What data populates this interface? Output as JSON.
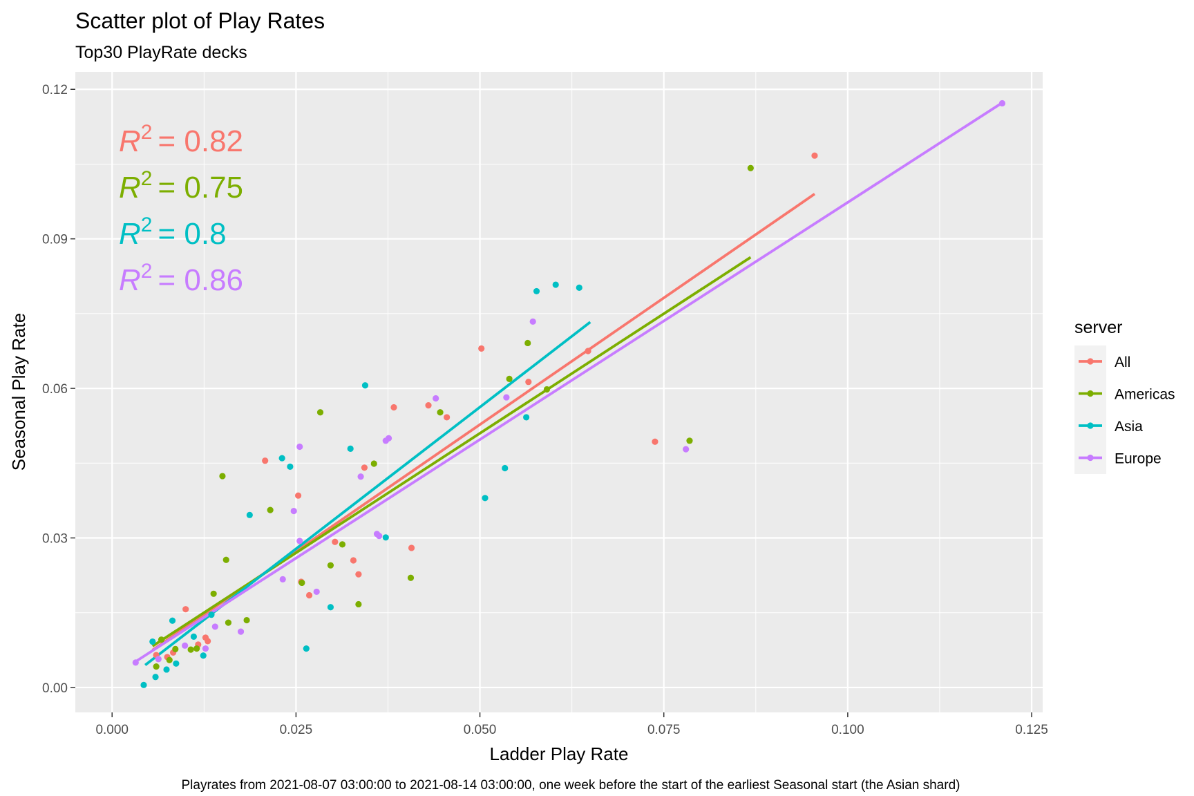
{
  "chart_data": {
    "type": "scatter",
    "title": "Scatter plot of Play Rates",
    "subtitle": "Top30 PlayRate decks",
    "xlabel": "Ladder Play Rate",
    "ylabel": "Seasonal Play Rate",
    "caption": "Playrates from 2021-08-07 03:00:00 to 2021-08-14 03:00:00, one week before the start of the earliest Seasonal start (the Asian shard)",
    "xlim": [
      -0.005,
      0.1265
    ],
    "ylim": [
      -0.005,
      0.1235
    ],
    "x_ticks": [
      0.0,
      0.025,
      0.05,
      0.075,
      0.1,
      0.125
    ],
    "x_tick_labels": [
      "0.000",
      "0.025",
      "0.050",
      "0.075",
      "0.100",
      "0.125"
    ],
    "y_ticks": [
      0.0,
      0.03,
      0.06,
      0.09,
      0.12
    ],
    "y_tick_labels": [
      "0.00",
      "0.03",
      "0.06",
      "0.09",
      "0.12"
    ],
    "grid": true,
    "legend": {
      "title": "server",
      "position": "right"
    },
    "annotations": [
      {
        "prefix": "R",
        "sup": "2",
        "text": "= 0.82",
        "color": "#F8766D"
      },
      {
        "prefix": "R",
        "sup": "2",
        "text": "= 0.75",
        "color": "#7CAE00"
      },
      {
        "prefix": "R",
        "sup": "2",
        "text": "= 0.8",
        "color": "#00BFC4"
      },
      {
        "prefix": "R",
        "sup": "2",
        "text": "= 0.86",
        "color": "#C77CFF"
      }
    ],
    "series": [
      {
        "name": "All",
        "color": "#F8766D",
        "fit": {
          "x": [
            0.0055,
            0.0955
          ],
          "y": [
            0.0075,
            0.099
          ]
        },
        "points": [
          [
            0.0955,
            0.1067
          ],
          [
            0.0738,
            0.0493
          ],
          [
            0.0502,
            0.068
          ],
          [
            0.0566,
            0.0613
          ],
          [
            0.0647,
            0.0675
          ],
          [
            0.043,
            0.0566
          ],
          [
            0.0455,
            0.0542
          ],
          [
            0.0383,
            0.0562
          ],
          [
            0.0343,
            0.0441
          ],
          [
            0.0407,
            0.028
          ],
          [
            0.0335,
            0.0227
          ],
          [
            0.0328,
            0.0255
          ],
          [
            0.0303,
            0.0292
          ],
          [
            0.0253,
            0.0385
          ],
          [
            0.0208,
            0.0455
          ],
          [
            0.0257,
            0.0212
          ],
          [
            0.0268,
            0.0185
          ],
          [
            0.013,
            0.0093
          ],
          [
            0.0127,
            0.01
          ],
          [
            0.0117,
            0.0086
          ],
          [
            0.01,
            0.0157
          ],
          [
            0.0083,
            0.007
          ],
          [
            0.0075,
            0.0061
          ],
          [
            0.006,
            0.0065
          ]
        ]
      },
      {
        "name": "Americas",
        "color": "#7CAE00",
        "fit": {
          "x": [
            0.0055,
            0.0868
          ],
          "y": [
            0.0083,
            0.0863
          ]
        },
        "points": [
          [
            0.0868,
            0.1042
          ],
          [
            0.0785,
            0.0495
          ],
          [
            0.0565,
            0.0691
          ],
          [
            0.054,
            0.0619
          ],
          [
            0.0591,
            0.0598
          ],
          [
            0.0446,
            0.0552
          ],
          [
            0.0356,
            0.0449
          ],
          [
            0.0283,
            0.0552
          ],
          [
            0.015,
            0.0424
          ],
          [
            0.0215,
            0.0356
          ],
          [
            0.0313,
            0.0287
          ],
          [
            0.0297,
            0.0245
          ],
          [
            0.0335,
            0.0167
          ],
          [
            0.0406,
            0.022
          ],
          [
            0.0258,
            0.021
          ],
          [
            0.0155,
            0.0256
          ],
          [
            0.0138,
            0.0188
          ],
          [
            0.0183,
            0.0135
          ],
          [
            0.0158,
            0.013
          ],
          [
            0.0115,
            0.0078
          ],
          [
            0.0107,
            0.0076
          ],
          [
            0.0086,
            0.0077
          ],
          [
            0.0078,
            0.0055
          ],
          [
            0.0067,
            0.0096
          ],
          [
            0.006,
            0.0042
          ]
        ]
      },
      {
        "name": "Asia",
        "color": "#00BFC4",
        "fit": {
          "x": [
            0.0045,
            0.065
          ],
          "y": [
            0.0045,
            0.0733
          ]
        },
        "points": [
          [
            0.0603,
            0.0808
          ],
          [
            0.0635,
            0.0802
          ],
          [
            0.0577,
            0.0795
          ],
          [
            0.0344,
            0.0606
          ],
          [
            0.0563,
            0.0542
          ],
          [
            0.0534,
            0.044
          ],
          [
            0.0507,
            0.038
          ],
          [
            0.0324,
            0.0479
          ],
          [
            0.0231,
            0.046
          ],
          [
            0.0242,
            0.0443
          ],
          [
            0.0187,
            0.0346
          ],
          [
            0.0372,
            0.0301
          ],
          [
            0.0297,
            0.0161
          ],
          [
            0.0264,
            0.0078
          ],
          [
            0.0135,
            0.0146
          ],
          [
            0.0111,
            0.0102
          ],
          [
            0.0124,
            0.0064
          ],
          [
            0.0082,
            0.0134
          ],
          [
            0.0087,
            0.0048
          ],
          [
            0.0074,
            0.0036
          ],
          [
            0.0059,
            0.0021
          ],
          [
            0.0055,
            0.0092
          ],
          [
            0.0043,
            0.0005
          ]
        ]
      },
      {
        "name": "Europe",
        "color": "#C77CFF",
        "fit": {
          "x": [
            0.0032,
            0.121
          ],
          "y": [
            0.0052,
            0.1173
          ]
        },
        "points": [
          [
            0.121,
            0.1172
          ],
          [
            0.0572,
            0.0734
          ],
          [
            0.044,
            0.058
          ],
          [
            0.0536,
            0.0582
          ],
          [
            0.078,
            0.0478
          ],
          [
            0.0376,
            0.05
          ],
          [
            0.0372,
            0.0495
          ],
          [
            0.0255,
            0.0483
          ],
          [
            0.0338,
            0.0423
          ],
          [
            0.0247,
            0.0354
          ],
          [
            0.036,
            0.0308
          ],
          [
            0.0363,
            0.0304
          ],
          [
            0.0255,
            0.0294
          ],
          [
            0.0232,
            0.0217
          ],
          [
            0.0278,
            0.0192
          ],
          [
            0.0175,
            0.0112
          ],
          [
            0.014,
            0.0122
          ],
          [
            0.0127,
            0.0078
          ],
          [
            0.0099,
            0.0084
          ],
          [
            0.0063,
            0.0057
          ],
          [
            0.0032,
            0.005
          ]
        ]
      }
    ]
  }
}
